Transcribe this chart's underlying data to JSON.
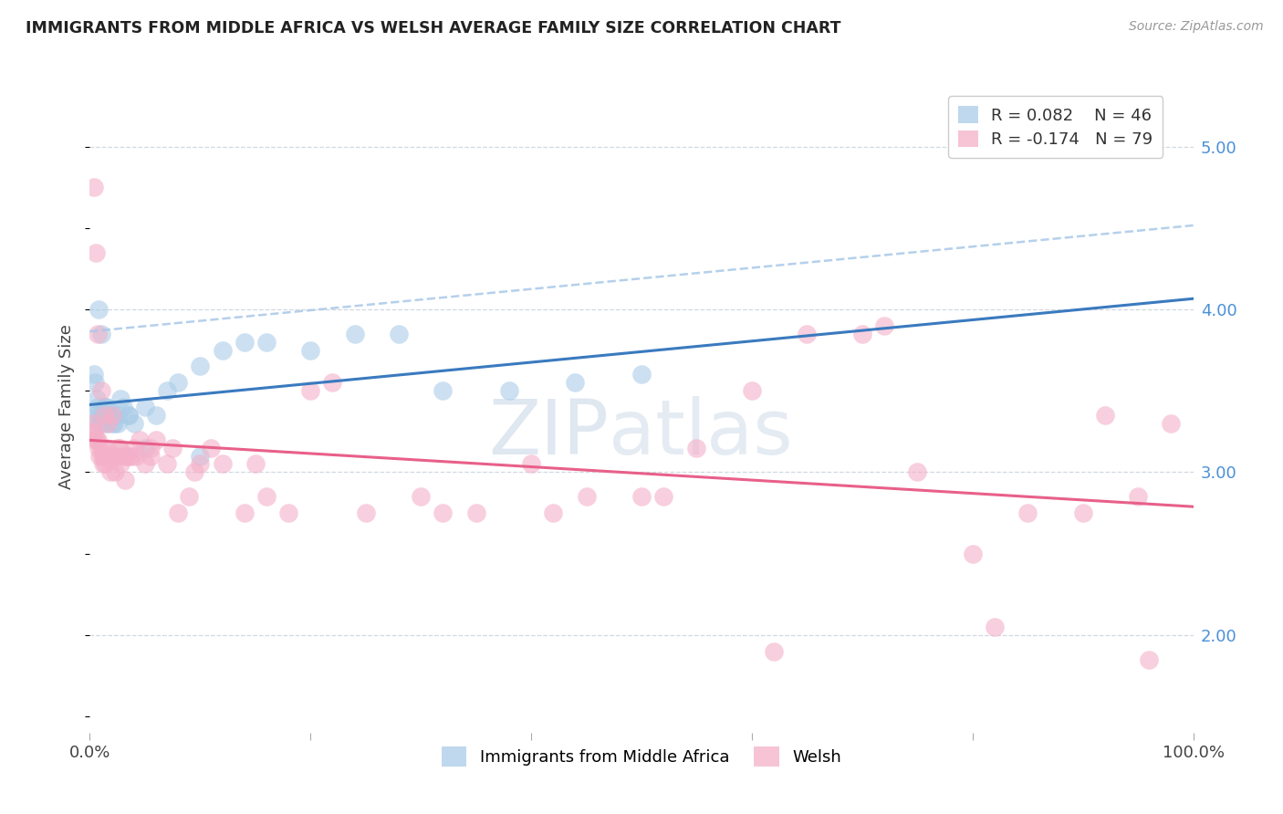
{
  "title": "IMMIGRANTS FROM MIDDLE AFRICA VS WELSH AVERAGE FAMILY SIZE CORRELATION CHART",
  "source": "Source: ZipAtlas.com",
  "ylabel": "Average Family Size",
  "series1_label": "Immigrants from Middle Africa",
  "series1_R": "0.082",
  "series1_N": "46",
  "series2_label": "Welsh",
  "series2_R": "-0.174",
  "series2_N": "79",
  "blue_color": "#aacce8",
  "pink_color": "#f4b0c8",
  "blue_line_color": "#3a7abf",
  "pink_line_color": "#e8608a",
  "blue_dash_color": "#a8c8e8",
  "watermark_zip": "ZIP",
  "watermark_atlas": "atlas",
  "blue_x": [
    0.2,
    0.4,
    0.5,
    0.6,
    0.7,
    0.8,
    0.9,
    1.0,
    1.1,
    1.2,
    1.3,
    1.4,
    1.5,
    1.6,
    1.8,
    2.0,
    2.2,
    2.5,
    2.8,
    3.0,
    3.5,
    4.0,
    5.0,
    6.0,
    7.0,
    8.0,
    10.0,
    12.0,
    14.0,
    16.0,
    20.0,
    24.0,
    28.0,
    32.0,
    38.0,
    44.0,
    50.0,
    1.5,
    2.5,
    3.5,
    0.8,
    1.0,
    1.5,
    2.0,
    5.0,
    10.0
  ],
  "blue_y": [
    3.35,
    3.6,
    3.55,
    3.45,
    3.4,
    3.35,
    3.3,
    3.3,
    3.35,
    3.35,
    3.4,
    3.4,
    3.4,
    3.35,
    3.35,
    3.35,
    3.3,
    3.35,
    3.45,
    3.4,
    3.35,
    3.3,
    3.4,
    3.35,
    3.5,
    3.55,
    3.65,
    3.75,
    3.8,
    3.8,
    3.75,
    3.85,
    3.85,
    3.5,
    3.5,
    3.55,
    3.6,
    3.3,
    3.3,
    3.35,
    4.0,
    3.85,
    3.35,
    3.3,
    3.15,
    3.1
  ],
  "pink_x": [
    0.2,
    0.3,
    0.4,
    0.5,
    0.6,
    0.7,
    0.8,
    0.9,
    1.0,
    1.1,
    1.2,
    1.3,
    1.4,
    1.5,
    1.7,
    1.9,
    2.1,
    2.3,
    2.5,
    2.8,
    3.0,
    3.2,
    3.5,
    3.8,
    4.0,
    4.5,
    5.0,
    5.5,
    6.0,
    7.0,
    8.0,
    9.0,
    10.0,
    11.0,
    12.0,
    14.0,
    16.0,
    18.0,
    20.0,
    25.0,
    30.0,
    35.0,
    40.0,
    45.0,
    50.0,
    55.0,
    60.0,
    65.0,
    70.0,
    75.0,
    80.0,
    85.0,
    90.0,
    95.0,
    98.0,
    0.35,
    0.55,
    0.75,
    1.0,
    1.3,
    1.6,
    2.0,
    2.4,
    2.7,
    3.3,
    4.2,
    5.5,
    7.5,
    9.5,
    15.0,
    22.0,
    32.0,
    42.0,
    52.0,
    62.0,
    72.0,
    82.0,
    92.0,
    96.0
  ],
  "pink_y": [
    3.3,
    3.25,
    3.25,
    3.2,
    3.2,
    3.2,
    3.15,
    3.1,
    3.15,
    3.1,
    3.05,
    3.1,
    3.05,
    3.15,
    3.1,
    3.0,
    3.1,
    3.0,
    3.15,
    3.05,
    3.1,
    2.95,
    3.1,
    3.1,
    3.15,
    3.2,
    3.05,
    3.1,
    3.2,
    3.05,
    2.75,
    2.85,
    3.05,
    3.15,
    3.05,
    2.75,
    2.85,
    2.75,
    3.5,
    2.75,
    2.85,
    2.75,
    3.05,
    2.85,
    2.85,
    3.15,
    3.5,
    3.85,
    3.85,
    3.0,
    2.5,
    2.75,
    2.75,
    2.85,
    3.3,
    4.75,
    4.35,
    3.85,
    3.5,
    3.35,
    3.3,
    3.35,
    3.1,
    3.15,
    3.1,
    3.1,
    3.15,
    3.15,
    3.0,
    3.05,
    3.55,
    2.75,
    2.75,
    2.85,
    1.9,
    3.9,
    2.05,
    3.35,
    1.85
  ]
}
